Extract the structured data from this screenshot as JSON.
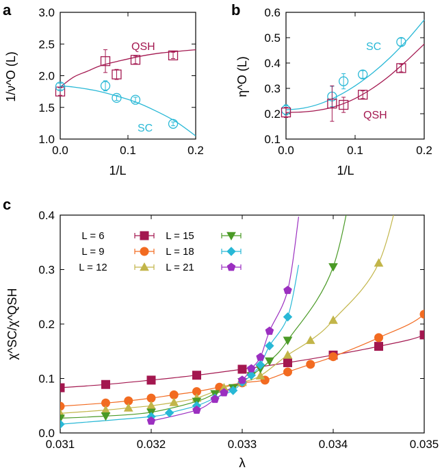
{
  "colors": {
    "qsh": "#a3174f",
    "sc": "#28b8d6",
    "L6": "#a3174f",
    "L9": "#f26b21",
    "L12": "#c2b549",
    "L15": "#4a9a26",
    "L18": "#28b8d6",
    "L21": "#9b2fc0"
  },
  "chart_data": [
    {
      "panel_label": "a",
      "type": "scatter",
      "xlabel": "1/L",
      "ylabel": "1/ν^O (L)",
      "xlim": [
        0,
        0.2
      ],
      "ylim": [
        1.0,
        3.0
      ],
      "xticks": [
        "0.0",
        "0.1",
        "0.2"
      ],
      "yticks": [
        "1.0",
        "1.5",
        "2.0",
        "2.5",
        "3.0"
      ],
      "series": [
        {
          "name": "QSH",
          "marker": "square",
          "color_key": "qsh",
          "x": [
            0.0,
            0.0667,
            0.0833,
            0.1111,
            0.1667
          ],
          "y": [
            1.75,
            2.23,
            2.02,
            2.25,
            2.32
          ],
          "err": [
            0.06,
            0.18,
            0.08,
            0.06,
            0.05
          ],
          "fit": [
            1.82,
            1.98,
            2.07,
            2.16,
            2.24,
            2.31,
            2.36,
            2.41
          ],
          "fit_x": [
            0.0,
            0.02,
            0.04,
            0.06,
            0.09,
            0.12,
            0.15,
            0.2
          ]
        },
        {
          "name": "SC",
          "marker": "circle",
          "color_key": "sc",
          "x": [
            0.0,
            0.0667,
            0.0833,
            0.1111,
            0.1667
          ],
          "y": [
            1.83,
            1.84,
            1.65,
            1.62,
            1.24
          ],
          "err": [
            0.05,
            0.08,
            0.04,
            0.04,
            0.03
          ],
          "fit": [
            1.84,
            1.82,
            1.77,
            1.69,
            1.59,
            1.45,
            1.28,
            1.05
          ],
          "fit_x": [
            0.0,
            0.02,
            0.05,
            0.08,
            0.11,
            0.14,
            0.17,
            0.2
          ]
        }
      ],
      "annotations": [
        "QSH",
        "SC"
      ]
    },
    {
      "panel_label": "b",
      "type": "scatter",
      "xlabel": "1/L",
      "ylabel": "η^O (L)",
      "xlim": [
        0,
        0.2
      ],
      "ylim": [
        0.1,
        0.6
      ],
      "xticks": [
        "0.0",
        "0.1",
        "0.2"
      ],
      "yticks": [
        "0.1",
        "0.2",
        "0.3",
        "0.4",
        "0.5",
        "0.6"
      ],
      "series": [
        {
          "name": "SC",
          "marker": "circle",
          "color_key": "sc",
          "x": [
            0.0,
            0.0667,
            0.0833,
            0.1111,
            0.1667
          ],
          "y": [
            0.215,
            0.268,
            0.328,
            0.355,
            0.483
          ],
          "err": [
            0.02,
            0.04,
            0.03,
            0.015,
            0.015
          ],
          "fit": [
            0.215,
            0.222,
            0.24,
            0.27,
            0.31,
            0.36,
            0.42,
            0.49,
            0.57
          ],
          "fit_x": [
            0.0,
            0.025,
            0.05,
            0.075,
            0.1,
            0.125,
            0.15,
            0.175,
            0.2
          ]
        },
        {
          "name": "QSH",
          "marker": "square",
          "color_key": "qsh",
          "x": [
            0.0,
            0.0667,
            0.0833,
            0.1111,
            0.1667
          ],
          "y": [
            0.205,
            0.24,
            0.235,
            0.275,
            0.38
          ],
          "err": [
            0.02,
            0.07,
            0.03,
            0.015,
            0.015
          ],
          "fit": [
            0.205,
            0.207,
            0.215,
            0.232,
            0.26,
            0.3,
            0.35,
            0.41,
            0.475
          ],
          "fit_x": [
            0.0,
            0.025,
            0.05,
            0.075,
            0.1,
            0.125,
            0.15,
            0.175,
            0.2
          ]
        }
      ],
      "annotations": [
        "SC",
        "QSH"
      ]
    },
    {
      "panel_label": "c",
      "type": "line",
      "xlabel": "λ",
      "ylabel": "χ^SC/χ^QSH",
      "xlim": [
        0.031,
        0.035
      ],
      "ylim": [
        0.0,
        0.4
      ],
      "xticks": [
        "0.031",
        "0.032",
        "0.033",
        "0.034",
        "0.035"
      ],
      "yticks": [
        "0.0",
        "0.1",
        "0.2",
        "0.3",
        "0.4"
      ],
      "series": [
        {
          "name": "L = 6",
          "marker": "square",
          "color_key": "L6",
          "x": [
            0.031,
            0.0315,
            0.032,
            0.0325,
            0.033,
            0.0335,
            0.034,
            0.0345,
            0.035
          ],
          "y": [
            0.083,
            0.089,
            0.097,
            0.106,
            0.117,
            0.129,
            0.143,
            0.159,
            0.18
          ]
        },
        {
          "name": "L = 9",
          "marker": "circle",
          "color_key": "L9",
          "x": [
            0.031,
            0.0315,
            0.03175,
            0.032,
            0.03225,
            0.0325,
            0.03275,
            0.033,
            0.03325,
            0.0335,
            0.03375,
            0.034,
            0.0345,
            0.035
          ],
          "y": [
            0.049,
            0.055,
            0.059,
            0.064,
            0.07,
            0.076,
            0.084,
            0.092,
            0.097,
            0.112,
            0.126,
            0.14,
            0.175,
            0.218
          ]
        },
        {
          "name": "L = 12",
          "marker": "triangle-up",
          "color_key": "L12",
          "x": [
            0.031,
            0.0315,
            0.03175,
            0.032,
            0.03225,
            0.0325,
            0.0328,
            0.033,
            0.0332,
            0.0335,
            0.03375,
            0.034,
            0.0345
          ],
          "y": [
            0.036,
            0.042,
            0.046,
            0.05,
            0.056,
            0.064,
            0.083,
            0.093,
            0.105,
            0.143,
            0.17,
            0.207,
            0.312
          ]
        },
        {
          "name": "L = 15",
          "marker": "triangle-down",
          "color_key": "L15",
          "x": [
            0.031,
            0.0315,
            0.032,
            0.0325,
            0.0327,
            0.0329,
            0.033,
            0.0331,
            0.0332,
            0.0333,
            0.0335,
            0.034
          ],
          "y": [
            0.027,
            0.031,
            0.038,
            0.058,
            0.072,
            0.083,
            0.094,
            0.105,
            0.118,
            0.132,
            0.17,
            0.305
          ]
        },
        {
          "name": "L = 18",
          "marker": "diamond",
          "color_key": "L18",
          "x": [
            0.031,
            0.032,
            0.0322,
            0.0325,
            0.0327,
            0.0329,
            0.033,
            0.0331,
            0.0332,
            0.0333,
            0.0335
          ],
          "y": [
            0.016,
            0.03,
            0.037,
            0.05,
            0.064,
            0.078,
            0.093,
            0.106,
            0.125,
            0.16,
            0.213
          ]
        },
        {
          "name": "L = 21",
          "marker": "pentagon",
          "color_key": "L21",
          "x": [
            0.032,
            0.0325,
            0.0327,
            0.0328,
            0.033,
            0.0331,
            0.0332,
            0.0333,
            0.0335
          ],
          "y": [
            0.022,
            0.042,
            0.062,
            0.074,
            0.097,
            0.118,
            0.139,
            0.187,
            0.262
          ]
        }
      ],
      "legend_position": "top-left"
    }
  ]
}
